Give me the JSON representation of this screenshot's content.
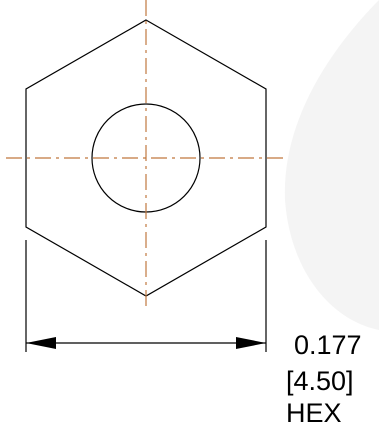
{
  "drawing": {
    "dimension": {
      "inch_value": "0.177",
      "mm_value": "[4.50]",
      "feature": "HEX"
    },
    "colors": {
      "outline": "#000000",
      "centerline": "#c0783f",
      "watermark": "#f3f3f3"
    }
  }
}
